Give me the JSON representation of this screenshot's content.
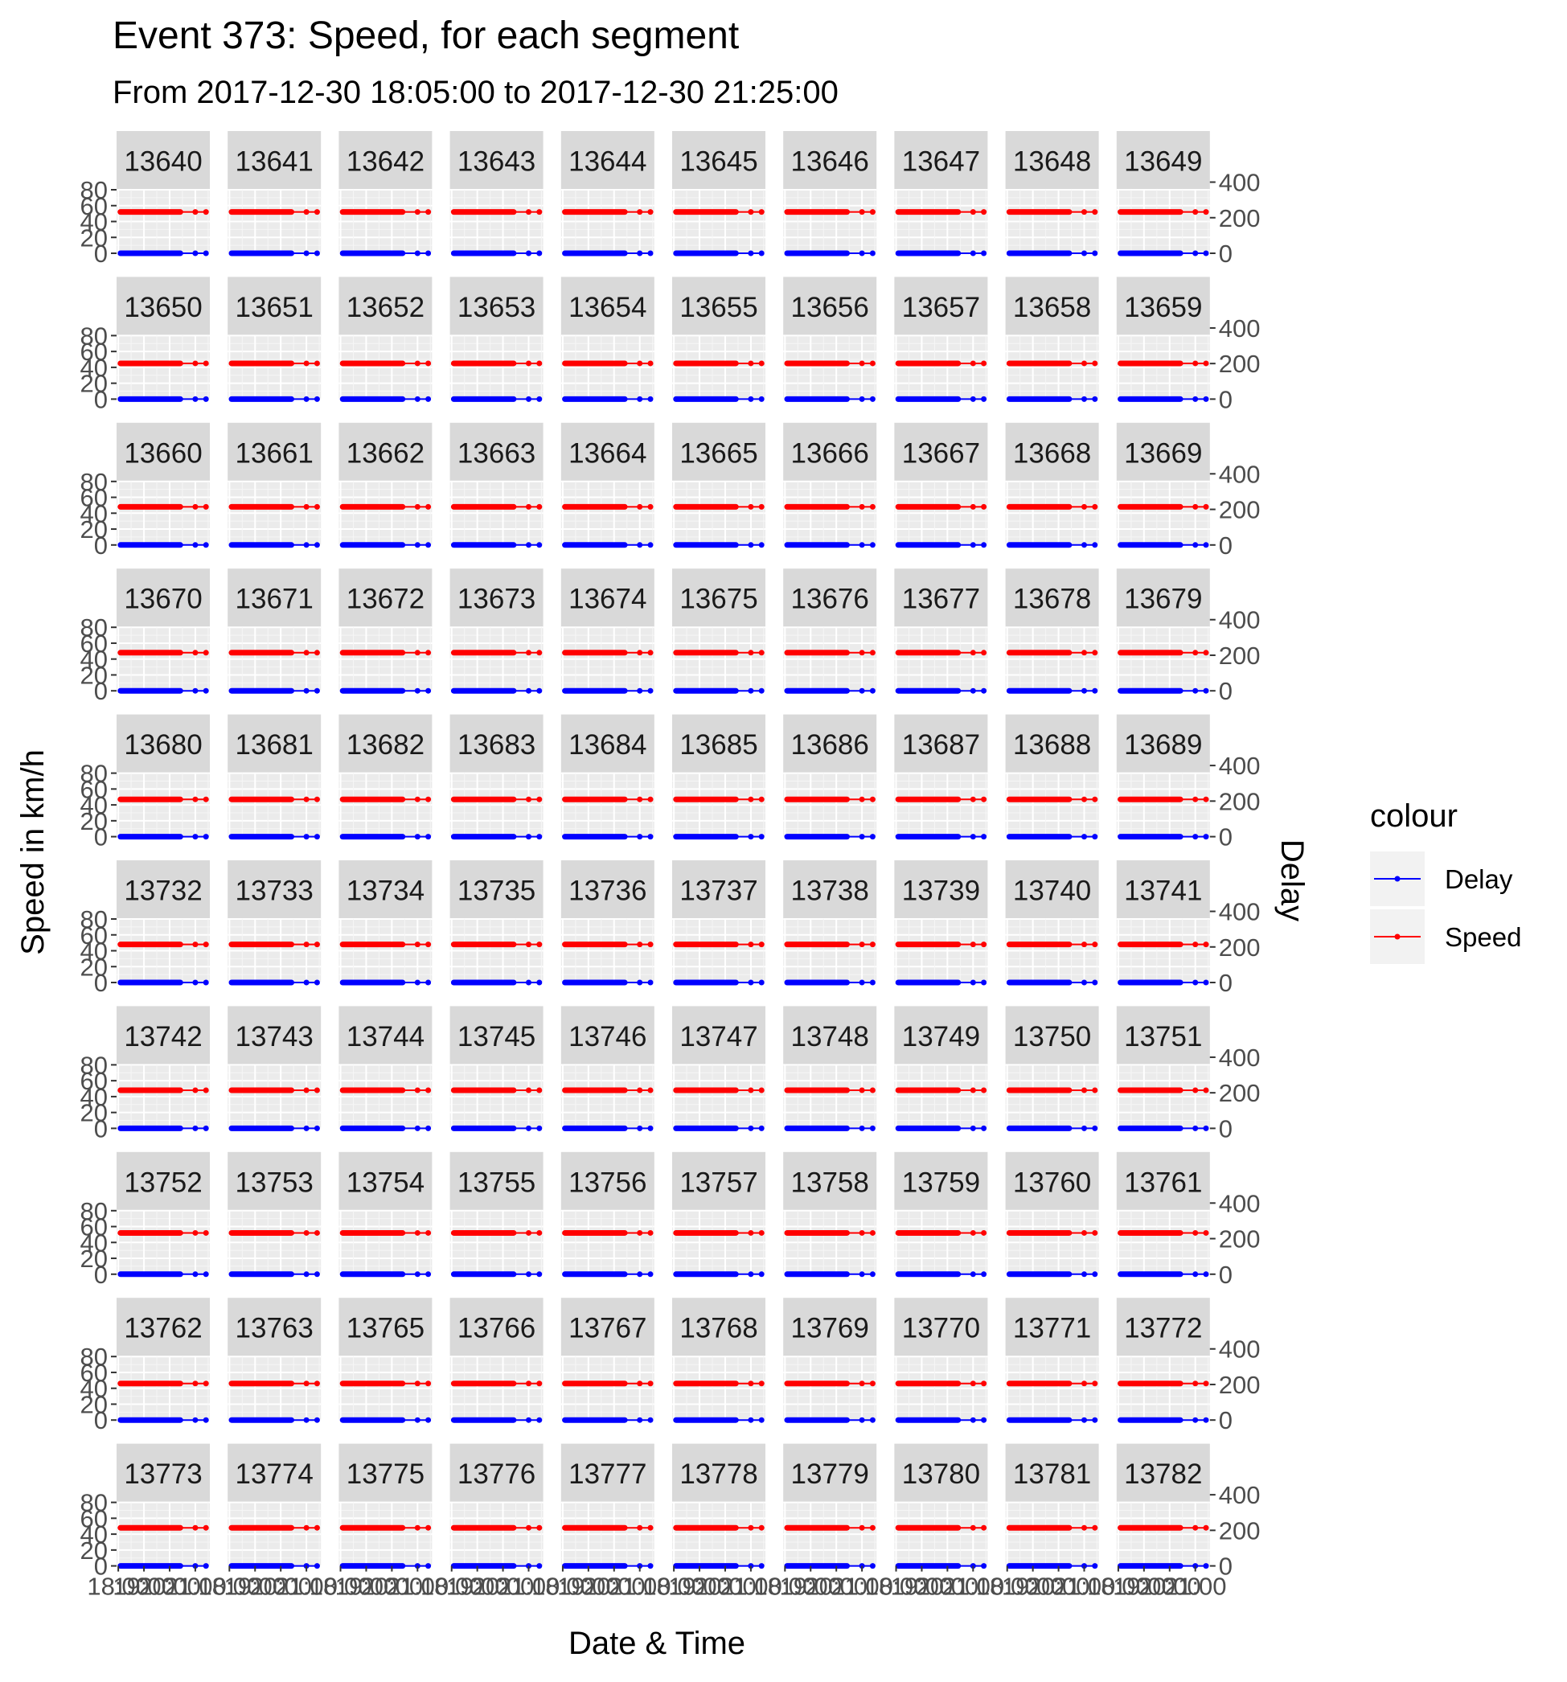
{
  "chart_data": {
    "type": "line",
    "title": "Event 373: Speed, for each segment",
    "subtitle": "From 2017-12-30 18:05:00 to 2017-12-30 21:25:00",
    "xlabel": "Date & Time",
    "ylabel": "Speed in km/h",
    "y2label": "Delay",
    "x_range": [
      "2017-12-30 18:05:00",
      "2017-12-30 21:25:00"
    ],
    "x_ticks": [
      "18:00",
      "19:00",
      "20:00",
      "21:00"
    ],
    "ylim": [
      0,
      80
    ],
    "y_ticks": [
      0,
      20,
      40,
      60,
      80
    ],
    "y2lim": [
      0,
      400
    ],
    "y2_ticks": [
      0,
      200,
      400
    ],
    "legend": {
      "title": "colour",
      "position": "right",
      "entries": [
        {
          "name": "Delay",
          "color": "#0000ff"
        },
        {
          "name": "Speed",
          "color": "#ff0000"
        }
      ]
    },
    "grid": true,
    "panel_background": "#ebebeb",
    "strip_background": "#d9d9d9",
    "layout": {
      "rows": 10,
      "cols": 10
    },
    "series_levels": {
      "speed_km_h_by_row": [
        52,
        45,
        48,
        48,
        47,
        48,
        48,
        52,
        46,
        48
      ],
      "delay_value": 0,
      "dense_until": "2017-12-30 20:25:00",
      "sparse_points": [
        "2017-12-30 21:00:00",
        "2017-12-30 21:25:00"
      ]
    },
    "segments": [
      "13640",
      "13641",
      "13642",
      "13643",
      "13644",
      "13645",
      "13646",
      "13647",
      "13648",
      "13649",
      "13650",
      "13651",
      "13652",
      "13653",
      "13654",
      "13655",
      "13656",
      "13657",
      "13658",
      "13659",
      "13660",
      "13661",
      "13662",
      "13663",
      "13664",
      "13665",
      "13666",
      "13667",
      "13668",
      "13669",
      "13670",
      "13671",
      "13672",
      "13673",
      "13674",
      "13675",
      "13676",
      "13677",
      "13678",
      "13679",
      "13680",
      "13681",
      "13682",
      "13683",
      "13684",
      "13685",
      "13686",
      "13687",
      "13688",
      "13689",
      "13732",
      "13733",
      "13734",
      "13735",
      "13736",
      "13737",
      "13738",
      "13739",
      "13740",
      "13741",
      "13742",
      "13743",
      "13744",
      "13745",
      "13746",
      "13747",
      "13748",
      "13749",
      "13750",
      "13751",
      "13752",
      "13753",
      "13754",
      "13755",
      "13756",
      "13757",
      "13758",
      "13759",
      "13760",
      "13761",
      "13762",
      "13763",
      "13765",
      "13766",
      "13767",
      "13768",
      "13769",
      "13770",
      "13771",
      "13772",
      "13773",
      "13774",
      "13775",
      "13776",
      "13777",
      "13778",
      "13779",
      "13780",
      "13781",
      "13782"
    ]
  }
}
